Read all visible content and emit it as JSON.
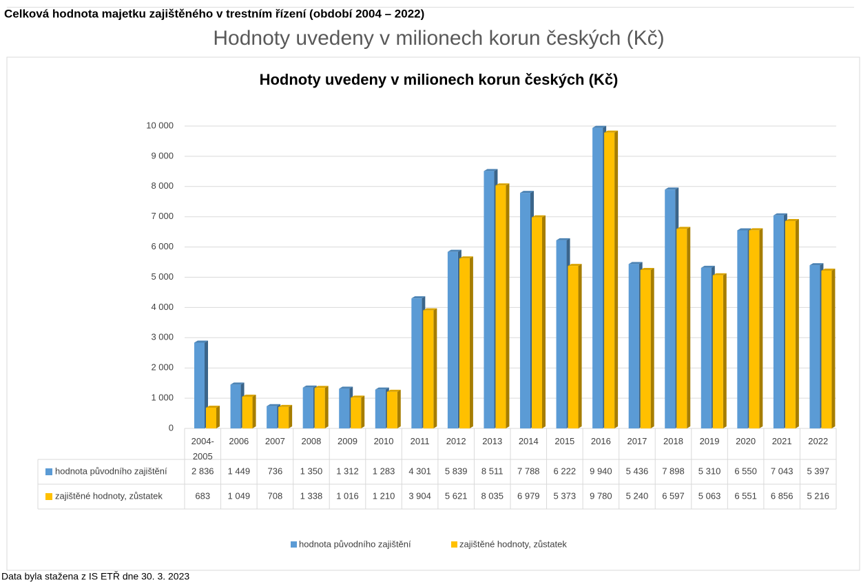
{
  "header": {
    "title": "Celková hodnota majetku zajištěného v trestním řízení (období 2004 – 2022)",
    "subtitle": "Hodnoty uvedeny v milionech korun českých (Kč)"
  },
  "chart_data": {
    "type": "bar",
    "title": "Hodnoty uvedeny v milionech korun českých (Kč)",
    "categories": [
      "2004-2005",
      "2006",
      "2007",
      "2008",
      "2009",
      "2010",
      "2011",
      "2012",
      "2013",
      "2014",
      "2015",
      "2016",
      "2017",
      "2018",
      "2019",
      "2020",
      "2021",
      "2022"
    ],
    "series": [
      {
        "name": "hodnota původního zajištění",
        "color": "#5b9bd5",
        "values": [
          2836,
          1449,
          736,
          1350,
          1312,
          1283,
          4301,
          5839,
          8511,
          7788,
          6222,
          9940,
          5436,
          7898,
          5310,
          6550,
          7043,
          5397
        ],
        "value_labels": [
          "2 836",
          "1 449",
          "736",
          "1 350",
          "1 312",
          "1 283",
          "4 301",
          "5 839",
          "8 511",
          "7 788",
          "6 222",
          "9 940",
          "5 436",
          "7 898",
          "5 310",
          "6 550",
          "7 043",
          "5 397"
        ]
      },
      {
        "name": "zajištěné hodnoty, zůstatek",
        "color": "#ffc000",
        "values": [
          683,
          1049,
          708,
          1338,
          1016,
          1210,
          3904,
          5621,
          8035,
          6979,
          5373,
          9780,
          5240,
          6597,
          5063,
          6551,
          6856,
          5216
        ],
        "value_labels": [
          "683",
          "1 049",
          "708",
          "1 338",
          "1 016",
          "1 210",
          "3 904",
          "5 621",
          "8 035",
          "6 979",
          "5 373",
          "9 780",
          "5 240",
          "6 597",
          "5 063",
          "6 551",
          "6 856",
          "5 216"
        ]
      }
    ],
    "ylim": [
      0,
      10000
    ],
    "yticks": [
      0,
      {
        "value": 1000,
        "label": "1 000"
      },
      {
        "value": 2000,
        "label": "2 000"
      },
      {
        "value": 3000,
        "label": "3 000"
      },
      {
        "value": 4000,
        "label": "4 000"
      },
      {
        "value": 5000,
        "label": "5 000"
      },
      {
        "value": 6000,
        "label": "6 000"
      },
      {
        "value": 7000,
        "label": "7 000"
      },
      {
        "value": 8000,
        "label": "8 000"
      },
      {
        "value": 9000,
        "label": "9 000"
      },
      {
        "value": 10000,
        "label": "10 000"
      }
    ],
    "grid": true,
    "legend": "bottom"
  },
  "footer": {
    "note": "Data byla stažena z IS ETŘ dne 30. 3. 2023"
  }
}
